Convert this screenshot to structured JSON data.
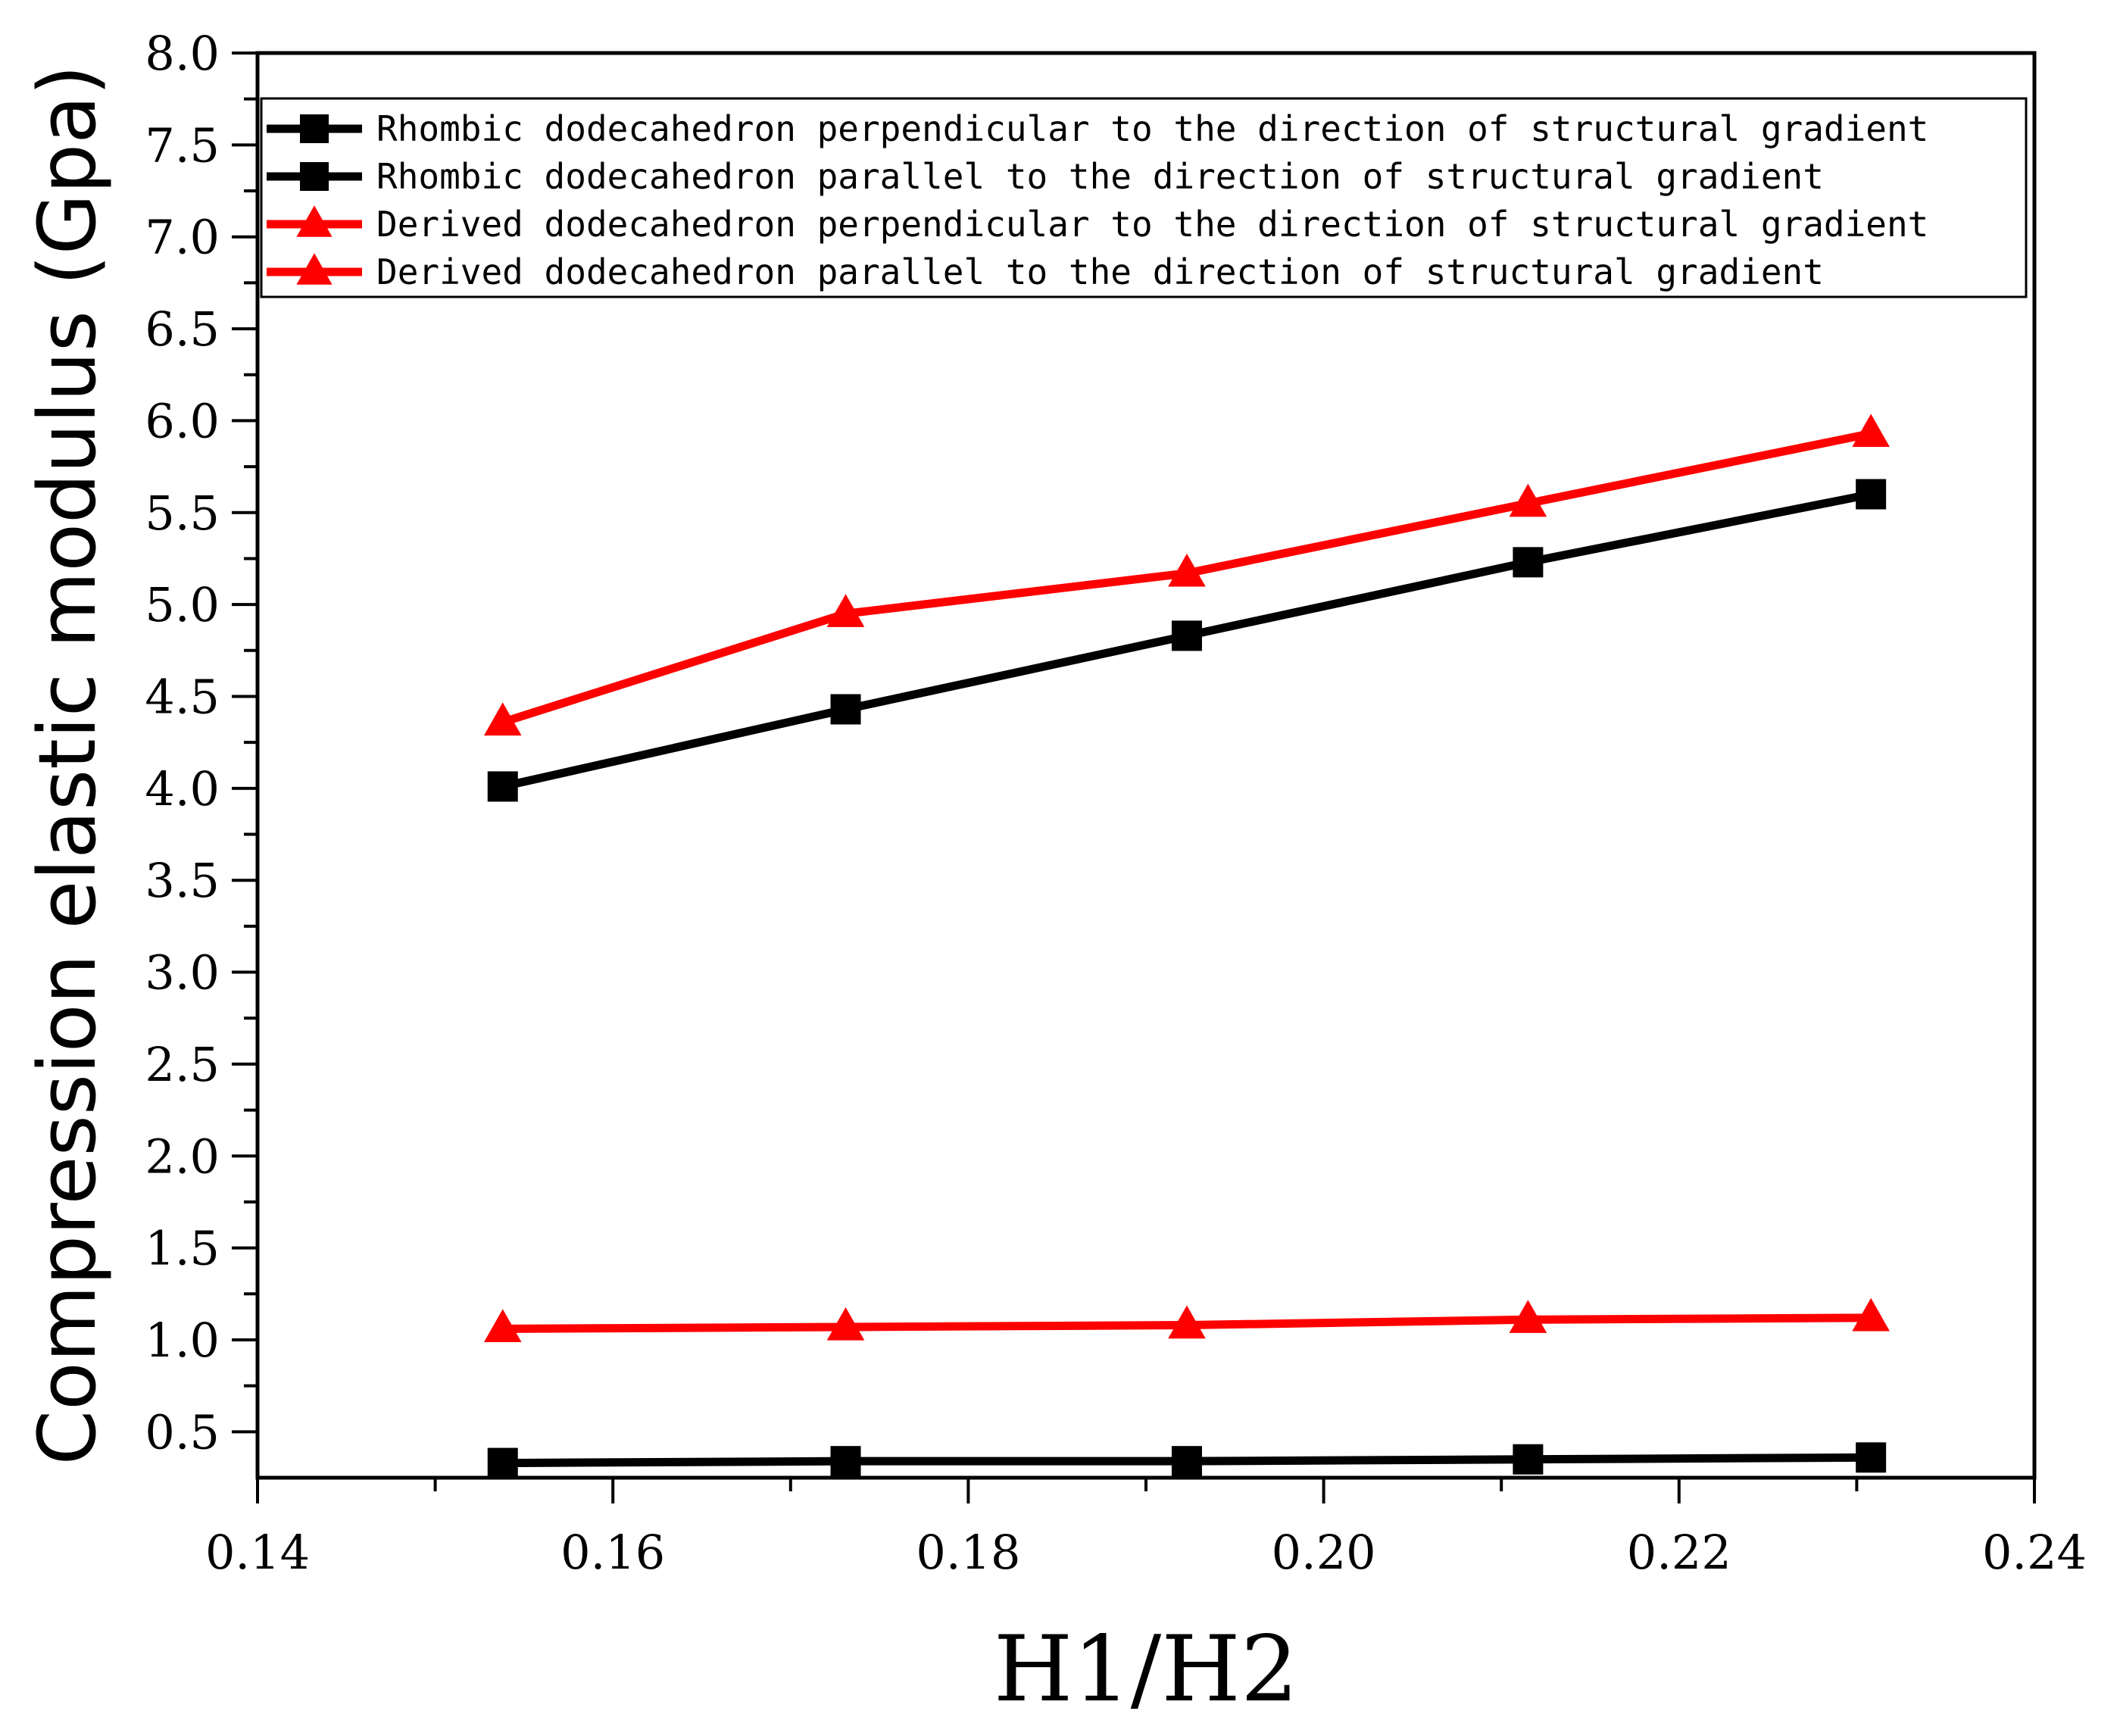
{
  "chart_data": {
    "type": "line",
    "title": "",
    "xlabel": "H1/H2",
    "ylabel": "Compression elastic modulus (Gpa)",
    "xlim": [
      0.14,
      0.24
    ],
    "ylim": [
      0.25,
      8.0
    ],
    "grid": false,
    "legend_position": "top",
    "x_ticks": [
      0.14,
      0.16,
      0.18,
      0.2,
      0.22,
      0.24
    ],
    "x_tick_labels": [
      "0.14",
      "0.16",
      "0.18",
      "0.20",
      "0.22",
      "0.24"
    ],
    "y_ticks": [
      0.5,
      1.0,
      1.5,
      2.0,
      2.5,
      3.0,
      3.5,
      4.0,
      4.5,
      5.0,
      5.5,
      6.0,
      6.5,
      7.0,
      7.5,
      8.0
    ],
    "y_tick_labels": [
      "0.5",
      "1.0",
      "1.5",
      "2.0",
      "2.5",
      "3.0",
      "3.5",
      "4.0",
      "4.5",
      "5.0",
      "5.5",
      "6.0",
      "6.5",
      "7.0",
      "7.5",
      "8.0"
    ],
    "x": [
      0.1538,
      0.1731,
      0.1923,
      0.2115,
      0.2308
    ],
    "series": [
      {
        "name": "Rhombic dodecahedron perpendicular to the direction of structural gradient",
        "color": "#000000",
        "marker": "square",
        "values": [
          4.01,
          4.43,
          4.83,
          5.23,
          5.6
        ]
      },
      {
        "name": "Rhombic dodecahedron parallel to the direction of structural gradient",
        "color": "#000000",
        "marker": "square",
        "values": [
          0.33,
          0.34,
          0.34,
          0.35,
          0.36
        ]
      },
      {
        "name": "Derived dodecahedron perpendicular to the direction of structural gradient",
        "color": "#ff0000",
        "marker": "triangle",
        "values": [
          4.36,
          4.95,
          5.17,
          5.55,
          5.93
        ]
      },
      {
        "name": "Derived dodecahedron parallel to the direction of structural gradient",
        "color": "#ff0000",
        "marker": "triangle",
        "values": [
          1.06,
          1.07,
          1.08,
          1.11,
          1.12
        ]
      }
    ]
  }
}
